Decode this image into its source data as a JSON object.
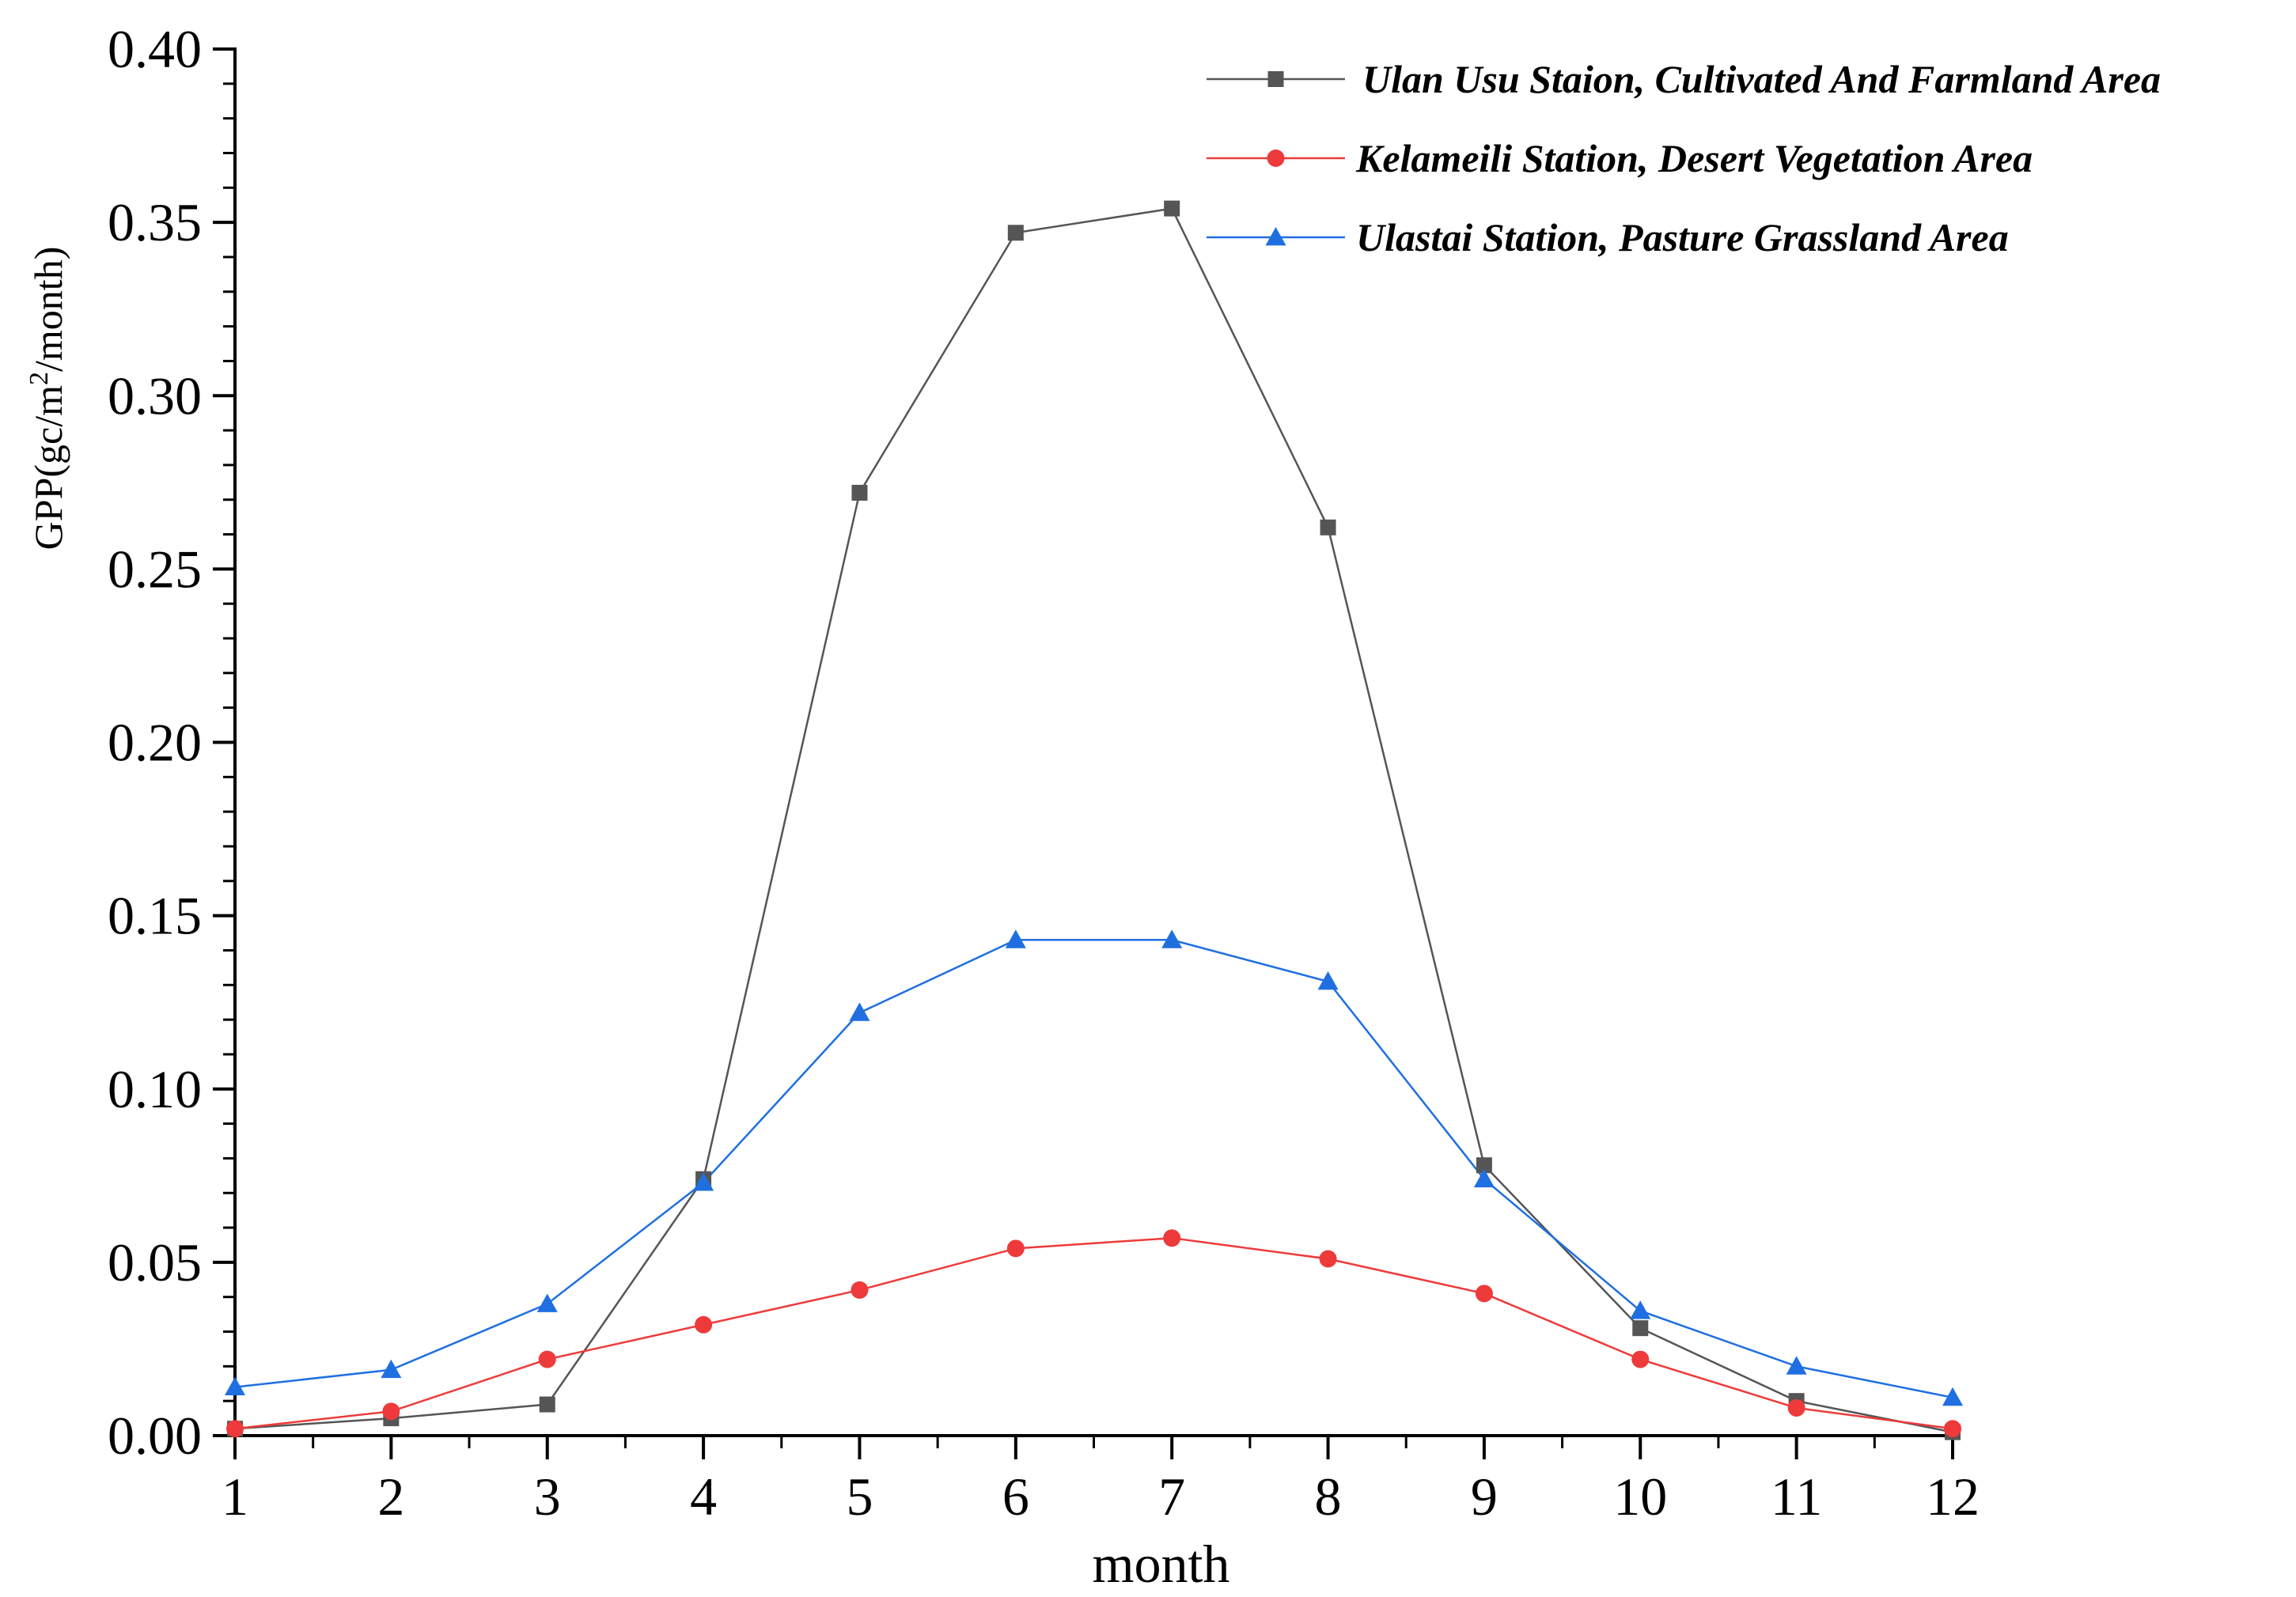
{
  "chart_data": {
    "type": "line",
    "xlabel": "month",
    "ylabel_parts": [
      "GPP(gc/m",
      "2",
      "/month)"
    ],
    "x": [
      1,
      2,
      3,
      4,
      5,
      6,
      7,
      8,
      9,
      10,
      11,
      12
    ],
    "x_ticks": [
      "1",
      "2",
      "3",
      "4",
      "5",
      "6",
      "7",
      "8",
      "9",
      "10",
      "11",
      "12"
    ],
    "xlim": [
      1,
      12
    ],
    "ylim": [
      0,
      0.4
    ],
    "y_ticks": [
      "0.00",
      "0.05",
      "0.10",
      "0.15",
      "0.20",
      "0.25",
      "0.30",
      "0.35",
      "0.40"
    ],
    "y_tick_values": [
      0,
      0.05,
      0.1,
      0.15,
      0.2,
      0.25,
      0.3,
      0.35,
      0.4
    ],
    "grid": false,
    "legend_position": "top-right",
    "series": [
      {
        "name": "Ulan Usu Staion, Cultivated And Farmland Area",
        "color": "#555555",
        "marker": "square",
        "values": [
          0.002,
          0.005,
          0.009,
          0.074,
          0.272,
          0.347,
          0.354,
          0.262,
          0.078,
          0.031,
          0.01,
          0.001
        ]
      },
      {
        "name": "Kelameili Station, Desert Vegetation Area",
        "color": "#ee3a3a",
        "marker": "circle",
        "values": [
          0.002,
          0.007,
          0.022,
          0.032,
          0.042,
          0.054,
          0.057,
          0.051,
          0.041,
          0.022,
          0.008,
          0.002
        ]
      },
      {
        "name": "Ulastai Station, Pasture Grassland Area",
        "color": "#1f6fe0",
        "marker": "triangle",
        "values": [
          0.014,
          0.019,
          0.038,
          0.073,
          0.122,
          0.143,
          0.143,
          0.131,
          0.074,
          0.036,
          0.02,
          0.011
        ]
      }
    ]
  }
}
